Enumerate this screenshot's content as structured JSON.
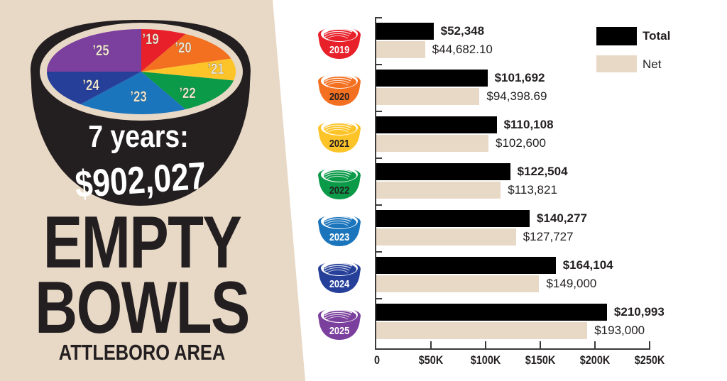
{
  "left_panel": {
    "background": "#e8d8c6",
    "bowl": {
      "headline": "7 years:",
      "total": "$902,027",
      "pie_labels": [
        "'19",
        "'20",
        "'21",
        "'22",
        "'23",
        "'24",
        "'25"
      ]
    },
    "title_line1": "EMPTY",
    "title_line2": "BOWLS",
    "subtitle": "ATTLEBORO AREA"
  },
  "legend": {
    "items": [
      {
        "label": "Total",
        "color": "#000000"
      },
      {
        "label": "Net",
        "color": "#e8d8c6"
      }
    ]
  },
  "colors": {
    "2019": "#e8202a",
    "2020": "#f37021",
    "2021": "#fdc42a",
    "2022": "#0a9a48",
    "2023": "#1b75bc",
    "2024": "#26409a",
    "2025": "#7b3f9d"
  },
  "chart_data": {
    "type": "bar",
    "orientation": "horizontal",
    "title": "",
    "xlabel": "",
    "ylabel": "",
    "categories": [
      "2019",
      "2020",
      "2021",
      "2022",
      "2023",
      "2024",
      "2025"
    ],
    "series": [
      {
        "name": "Total",
        "color": "#000000",
        "values": [
          52348,
          101692,
          110108,
          122504,
          140277,
          164104,
          210993
        ],
        "labels": [
          "$52,348",
          "$101,692",
          "$110,108",
          "$122,504",
          "$140,277",
          "$164,104",
          "$210,993"
        ]
      },
      {
        "name": "Net",
        "color": "#e8d8c6",
        "values": [
          44682.1,
          94398.69,
          102600,
          113821,
          127727,
          149000,
          193000
        ],
        "labels": [
          "$44,682.10",
          "$94,398.69",
          "$102,600",
          "$113,821",
          "$127,727",
          "$149,000",
          "$193,000"
        ]
      }
    ],
    "xlim": [
      0,
      250000
    ],
    "x_ticks": [
      0,
      50000,
      100000,
      150000,
      200000,
      250000
    ],
    "x_tick_labels": [
      "0",
      "$50K",
      "$100K",
      "$150K",
      "$200K",
      "$250K"
    ],
    "legend_position": "top-right",
    "grid": false,
    "annotations": [
      "7 years: $902,027"
    ]
  }
}
